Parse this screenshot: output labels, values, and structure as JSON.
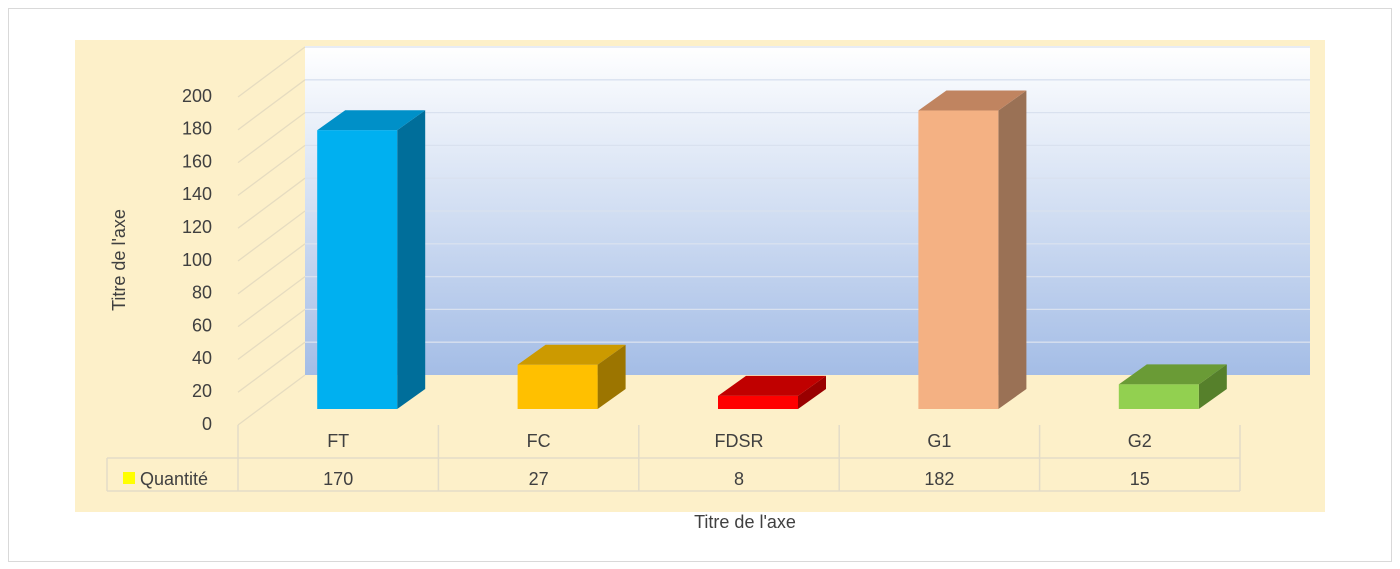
{
  "chart_data": {
    "type": "bar",
    "y_axis_title": "Titre de l'axe",
    "x_axis_title": "Titre de l'axe",
    "categories": [
      "FT",
      "FC",
      "FDSR",
      "G1",
      "G2"
    ],
    "series": [
      {
        "name": "Quantité",
        "color": "#ffff00",
        "values": [
          170,
          27,
          8,
          182,
          15
        ],
        "colors": [
          "#00b0f0",
          "#ffc000",
          "#ff0000",
          "#f4b183",
          "#92d050"
        ],
        "top_colors": [
          "#0090c8",
          "#cc9a00",
          "#c00000",
          "#c08460",
          "#6a9b36"
        ],
        "side_colors": [
          "#006e9a",
          "#9c7500",
          "#990000",
          "#9a7155",
          "#56802b"
        ]
      }
    ],
    "ylim": [
      0,
      200
    ],
    "yticks": [
      0,
      20,
      40,
      60,
      80,
      100,
      120,
      140,
      160,
      180,
      200
    ],
    "grid": true
  }
}
